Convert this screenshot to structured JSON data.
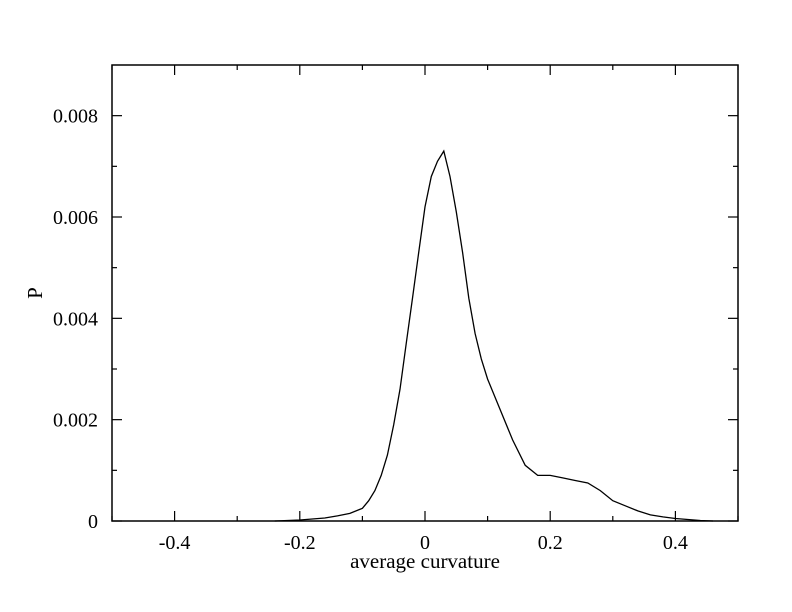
{
  "chart_data": {
    "type": "line",
    "title": "",
    "xlabel": "average curvature",
    "ylabel": "P",
    "xlim": [
      -0.5,
      0.5
    ],
    "ylim": [
      0,
      0.009
    ],
    "x_ticks": [
      -0.4,
      -0.2,
      0,
      0.2,
      0.4
    ],
    "x_tick_labels": [
      "-0.4",
      "-0.2",
      "0",
      "0.2",
      "0.4"
    ],
    "y_ticks": [
      0,
      0.002,
      0.004,
      0.006,
      0.008
    ],
    "y_tick_labels": [
      "0",
      "0.002",
      "0.004",
      "0.006",
      "0.008"
    ],
    "grid": false,
    "legend": "none",
    "series": [
      {
        "color": "#000000",
        "x": [
          -0.24,
          -0.2,
          -0.16,
          -0.14,
          -0.12,
          -0.1,
          -0.09,
          -0.08,
          -0.07,
          -0.06,
          -0.05,
          -0.04,
          -0.03,
          -0.02,
          -0.01,
          0.0,
          0.01,
          0.02,
          0.03,
          0.04,
          0.05,
          0.06,
          0.07,
          0.08,
          0.09,
          0.1,
          0.12,
          0.14,
          0.16,
          0.18,
          0.2,
          0.22,
          0.24,
          0.26,
          0.28,
          0.3,
          0.32,
          0.34,
          0.36,
          0.38,
          0.4,
          0.42,
          0.44,
          0.46
        ],
        "y": [
          0.0,
          2e-05,
          6e-05,
          0.0001,
          0.00015,
          0.00025,
          0.0004,
          0.0006,
          0.0009,
          0.0013,
          0.0019,
          0.0026,
          0.0035,
          0.0044,
          0.0053,
          0.0062,
          0.0068,
          0.0071,
          0.0073,
          0.0068,
          0.0061,
          0.0053,
          0.0044,
          0.0037,
          0.0032,
          0.0028,
          0.0022,
          0.0016,
          0.0011,
          0.0009,
          0.0009,
          0.00085,
          0.0008,
          0.00075,
          0.0006,
          0.0004,
          0.0003,
          0.0002,
          0.00012,
          8e-05,
          5e-05,
          3e-05,
          1e-05,
          0.0
        ]
      }
    ]
  }
}
